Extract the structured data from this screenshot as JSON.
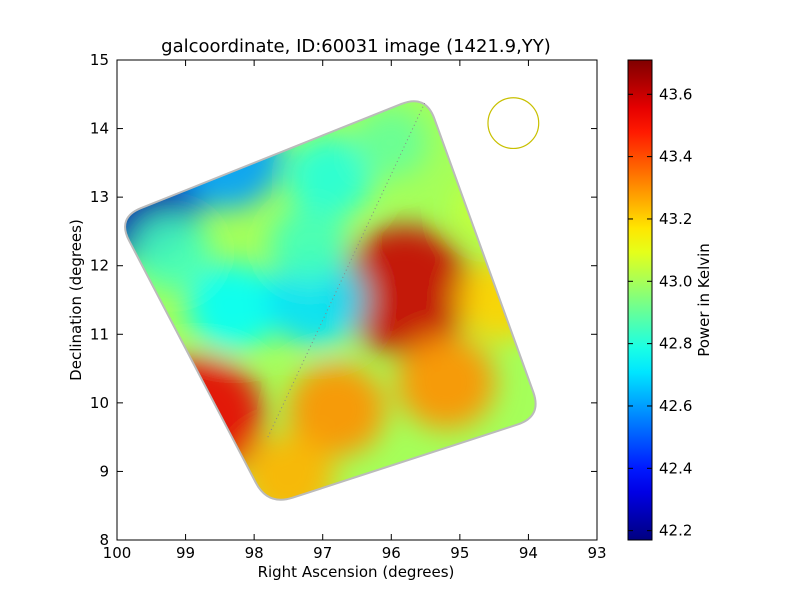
{
  "chart_data": {
    "type": "heatmap",
    "title": "galcoordinate, ID:60031 image (1421.9,YY)",
    "xlabel": "Right Ascension (degrees)",
    "ylabel": "Declination (degrees)",
    "xlim": [
      100,
      93
    ],
    "ylim": [
      8,
      15
    ],
    "x_ticks": [
      "100",
      "99",
      "98",
      "97",
      "96",
      "95",
      "94",
      "93"
    ],
    "y_ticks": [
      "8",
      "9",
      "10",
      "11",
      "12",
      "13",
      "14",
      "15"
    ],
    "colorbar": {
      "label": "Power in Kelvin",
      "range": [
        42.17,
        43.71
      ],
      "ticks": [
        "42.2",
        "42.4",
        "42.6",
        "42.8",
        "43.0",
        "43.2",
        "43.4",
        "43.6"
      ],
      "colormap": "jet"
    },
    "footprint_corners_radec": [
      [
        97.8,
        8.5
      ],
      [
        100.0,
        12.7
      ],
      [
        95.5,
        14.5
      ],
      [
        93.8,
        9.8
      ]
    ],
    "features": [
      {
        "ra": 99.75,
        "dec": 13.0,
        "value": 42.25
      },
      {
        "ra": 98.8,
        "dec": 9.8,
        "value": 43.55
      },
      {
        "ra": 95.8,
        "dec": 11.65,
        "value": 43.6
      },
      {
        "ra": 95.2,
        "dec": 10.3,
        "value": 43.3
      },
      {
        "ra": 96.8,
        "dec": 9.9,
        "value": 43.3
      },
      {
        "ra": 98.3,
        "dec": 11.4,
        "value": 42.75
      },
      {
        "ra": 97.1,
        "dec": 11.5,
        "value": 42.7
      },
      {
        "ra": 96.9,
        "dec": 13.3,
        "value": 42.8
      },
      {
        "ra": 96.0,
        "dec": 13.8,
        "value": 42.9
      },
      {
        "ra": 94.6,
        "dec": 12.8,
        "value": 43.05
      },
      {
        "ra": 94.4,
        "dec": 11.5,
        "value": 43.2
      },
      {
        "ra": 97.2,
        "dec": 12.3,
        "value": 42.85
      },
      {
        "ra": 99.2,
        "dec": 12.2,
        "value": 42.85
      },
      {
        "ra": 97.5,
        "dec": 8.9,
        "value": 43.25
      },
      {
        "ra": 98.4,
        "dec": 13.6,
        "value": 42.6
      }
    ],
    "diagonal_line": [
      [
        97.8,
        9.5
      ],
      [
        95.5,
        14.4
      ]
    ],
    "beam_circle": {
      "ra": 94.22,
      "dec": 14.08,
      "radius_deg": 0.37
    },
    "colors": {
      "beam": "#c8c000",
      "line": "#888888"
    }
  }
}
